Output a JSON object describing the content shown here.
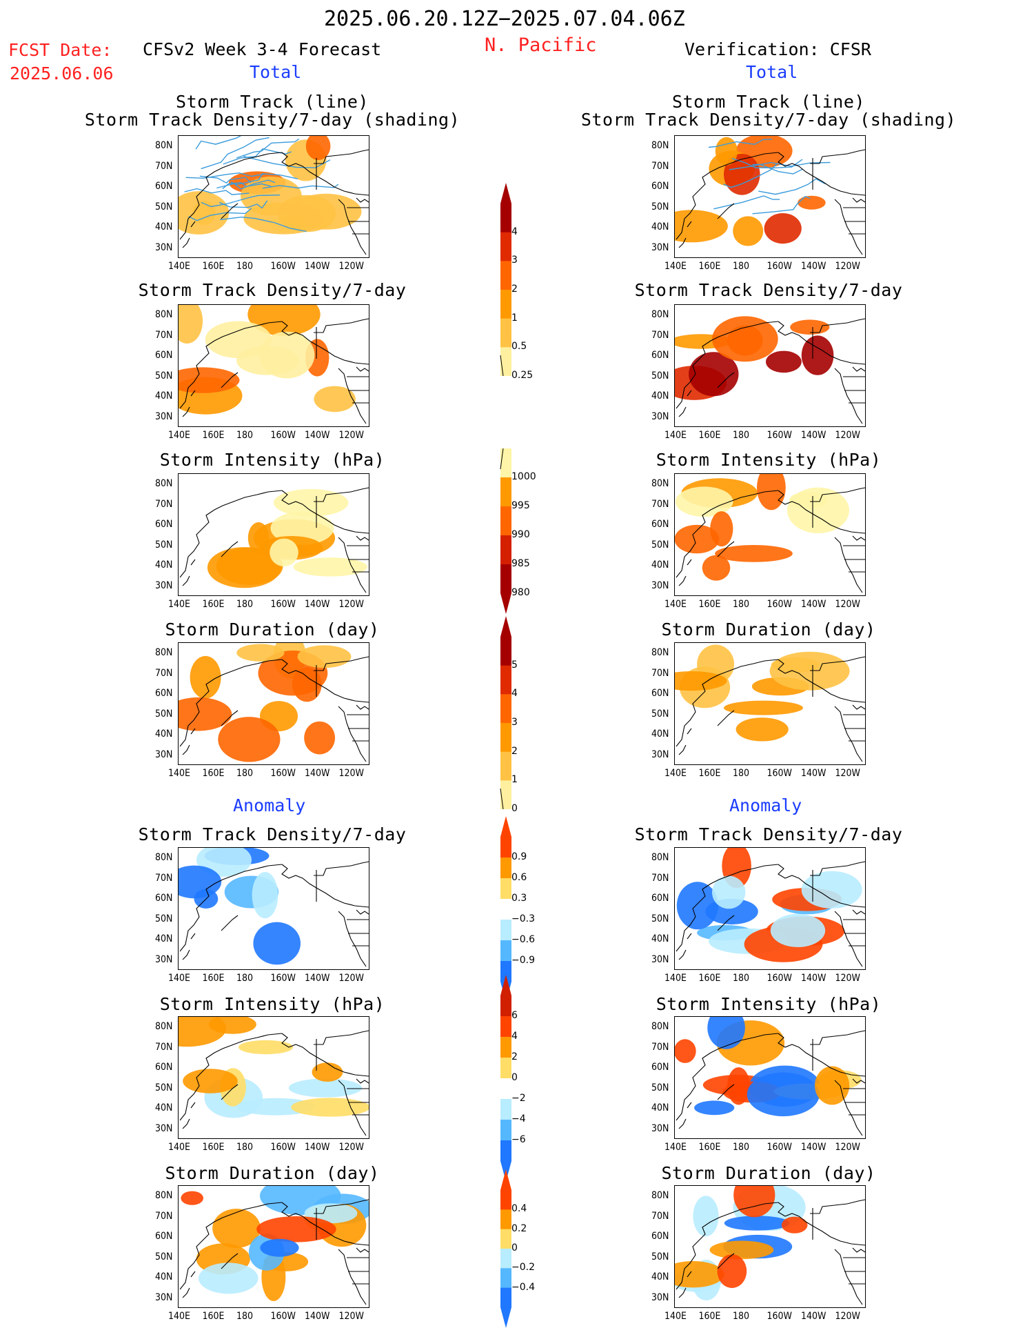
{
  "header": {
    "period": "2025.06.20.12Z−2025.07.04.06Z",
    "fcst_label": "FCST Date:",
    "fcst_date": "2025.06.06",
    "model": "CFSv2 Week 3-4 Forecast",
    "region": "N. Pacific",
    "verification": "Verification: CFSR",
    "total_left": "Total",
    "total_right": "Total",
    "anomaly_left": "Anomaly",
    "anomaly_right": "Anomaly"
  },
  "lat_labels": [
    "80N",
    "70N",
    "60N",
    "50N",
    "40N",
    "30N"
  ],
  "lon_labels": [
    "140E",
    "160E",
    "180",
    "160W",
    "140W",
    "120W"
  ],
  "panels": {
    "track_line": {
      "title1": "Storm Track (line)",
      "title2": "Storm Track Density/7-day (shading)"
    },
    "track_density": {
      "title": "Storm Track Density/7-day"
    },
    "intensity": {
      "title": "Storm Intensity (hPa)"
    },
    "duration": {
      "title": "Storm Duration (day)"
    }
  },
  "colorbars": {
    "density": {
      "labels": [
        "4",
        "3",
        "2",
        "1",
        "0.5",
        "0.25"
      ],
      "colors": [
        "#a50000",
        "#e02a00",
        "#ff6600",
        "#ff9900",
        "#ffc244",
        "#fff0a0"
      ]
    },
    "intensity": {
      "labels": [
        "1000",
        "995",
        "990",
        "985",
        "980"
      ],
      "colors": [
        "#fff5a8",
        "#ff9900",
        "#ff6600",
        "#d42000",
        "#a50000"
      ]
    },
    "duration": {
      "labels": [
        "5",
        "4",
        "3",
        "2",
        "1",
        "0"
      ],
      "colors": [
        "#a50000",
        "#e02a00",
        "#ff6600",
        "#ff9900",
        "#ffc244",
        "#fff0a0"
      ]
    },
    "anom_density": {
      "labels": [
        "0.9",
        "0.6",
        "0.3",
        "−0.3",
        "−0.6",
        "−0.9"
      ],
      "colors": [
        "#ff4400",
        "#ff9900",
        "#ffdd66",
        "#ffffff",
        "#b8ecff",
        "#55b8ff",
        "#1f78ff"
      ]
    },
    "anom_intensity": {
      "labels": [
        "6",
        "4",
        "2",
        "0",
        "−2",
        "−4",
        "−6"
      ],
      "colors": [
        "#d02000",
        "#ff4400",
        "#ff9900",
        "#ffdd66",
        "#ffffff",
        "#b8ecff",
        "#55b8ff",
        "#1f78ff"
      ]
    },
    "anom_duration": {
      "labels": [
        "0.4",
        "0.2",
        "0",
        "−0.2",
        "−0.4"
      ],
      "colors": [
        "#ff4400",
        "#ff9900",
        "#ffdd66",
        "#b8ecff",
        "#55b8ff",
        "#1f78ff"
      ]
    }
  }
}
